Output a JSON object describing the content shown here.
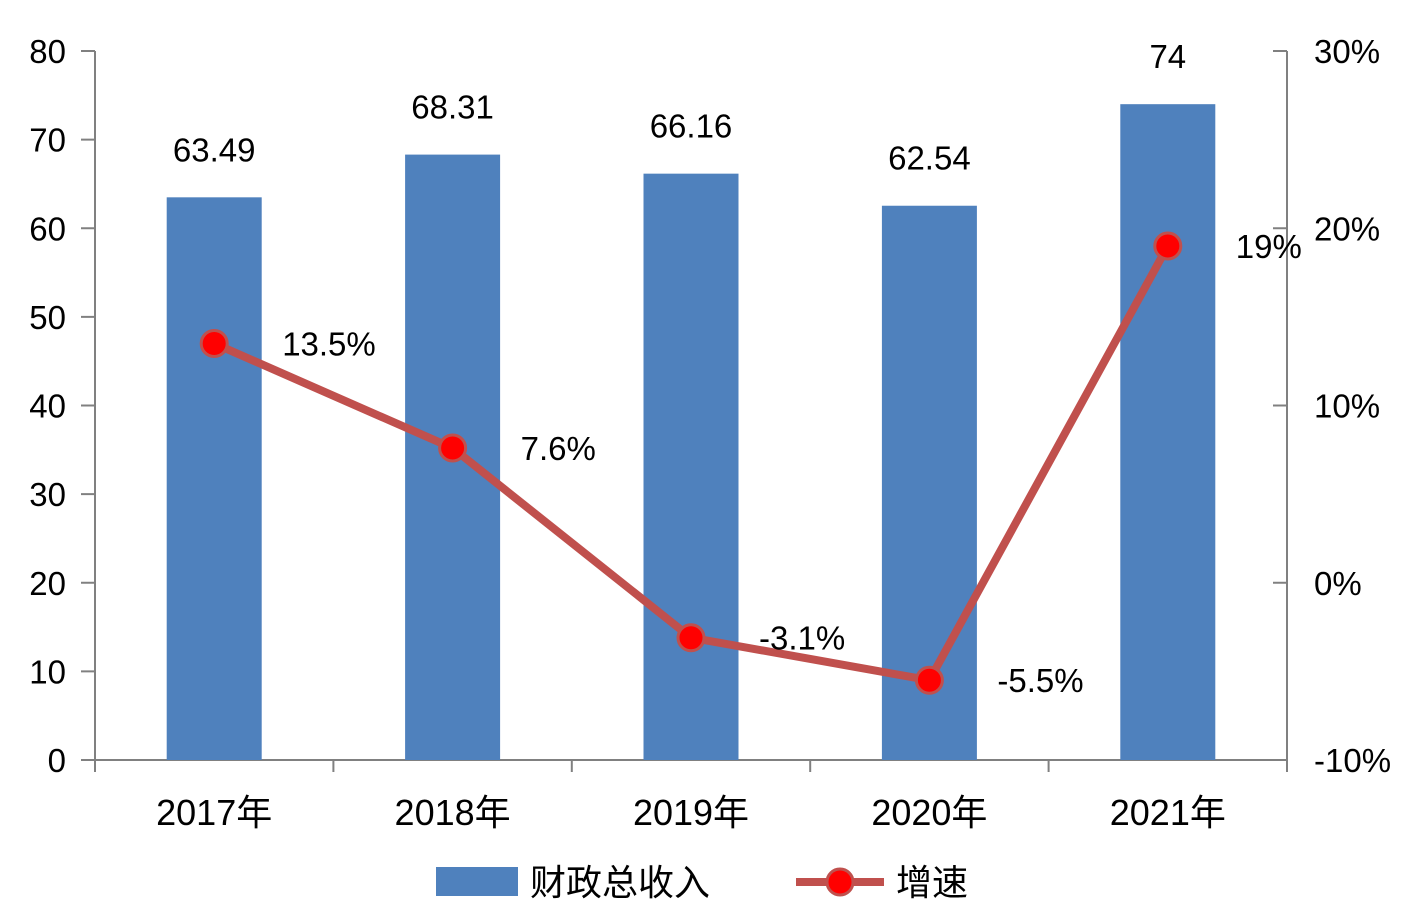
{
  "chart_data": {
    "type": "bar+line",
    "categories": [
      "2017年",
      "2018年",
      "2019年",
      "2020年",
      "2021年"
    ],
    "series": [
      {
        "name": "财政总收入",
        "type": "bar",
        "axis": "left",
        "values": [
          63.49,
          68.31,
          66.16,
          62.54,
          74
        ],
        "labels": [
          "63.49",
          "68.31",
          "66.16",
          "62.54",
          "74"
        ],
        "color": "#4F81BD"
      },
      {
        "name": "增速",
        "type": "line",
        "axis": "right",
        "values": [
          13.5,
          7.6,
          -3.1,
          -5.5,
          19
        ],
        "labels": [
          "13.5%",
          "7.6%",
          "-3.1%",
          "-5.5%",
          "19%"
        ],
        "color": "#C0504D",
        "marker_color": "#FF0000"
      }
    ],
    "y_left": {
      "ylim": [
        0,
        80
      ],
      "ticks": [
        0,
        10,
        20,
        30,
        40,
        50,
        60,
        70,
        80
      ],
      "tick_labels": [
        "0",
        "10",
        "20",
        "30",
        "40",
        "50",
        "60",
        "70",
        "80"
      ]
    },
    "y_right": {
      "ylim": [
        -10,
        30
      ],
      "ticks": [
        -10,
        0,
        10,
        20,
        30
      ],
      "tick_labels": [
        "-10%",
        "0%",
        "10%",
        "20%",
        "30%"
      ]
    },
    "grid": false,
    "legend": "bottom",
    "axis_color": "#808080"
  }
}
